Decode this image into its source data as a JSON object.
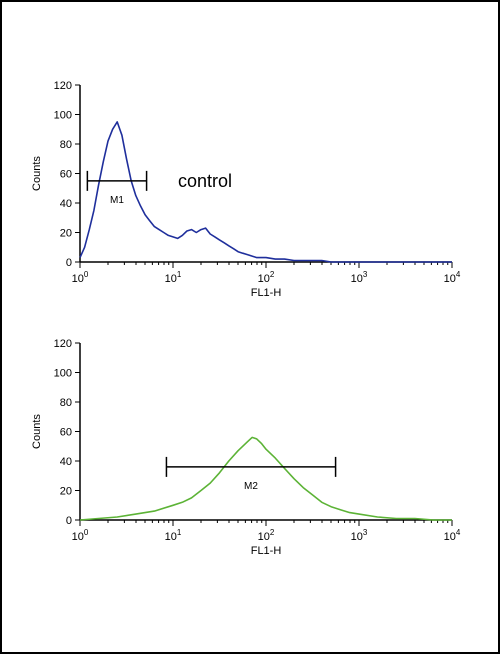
{
  "chart_data": [
    {
      "type": "line",
      "xlabel": "FL1-H",
      "ylabel": "Counts",
      "xscale": "log",
      "xlim": [
        1,
        10000
      ],
      "ylim": [
        0,
        120
      ],
      "x_ticks": [
        1,
        10,
        100,
        1000,
        10000
      ],
      "y_ticks": [
        0,
        20,
        40,
        60,
        80,
        100,
        120
      ],
      "color": "#1f2f9c",
      "series": [
        {
          "x": [
            1.0,
            1.12,
            1.26,
            1.41,
            1.58,
            1.78,
            2.0,
            2.24,
            2.51,
            2.82,
            3.16,
            3.55,
            3.98,
            4.47,
            5.01,
            5.62,
            6.31,
            7.08,
            7.94,
            8.91,
            10.0,
            11.2,
            12.6,
            14.1,
            15.8,
            17.8,
            20.0,
            22.4,
            25.1,
            28.2,
            31.6,
            35.5,
            39.8,
            44.7,
            50.1,
            56.2,
            63.1,
            70.8,
            79.4,
            89.1,
            100,
            126,
            158,
            200,
            251,
            316,
            398,
            501,
            631,
            794,
            1000,
            10000
          ],
          "y": [
            3,
            10,
            22,
            35,
            52,
            68,
            82,
            90,
            95,
            86,
            70,
            55,
            45,
            38,
            32,
            28,
            24,
            22,
            20,
            18,
            17,
            16,
            18,
            21,
            22,
            20,
            22,
            23,
            19,
            17,
            15,
            13,
            11,
            9,
            7,
            6,
            5,
            4,
            3,
            3,
            3,
            2,
            2,
            1,
            1,
            1,
            1,
            0,
            0,
            0,
            0,
            0
          ]
        }
      ],
      "gate": {
        "label": "M1",
        "x_start": 1.2,
        "x_end": 5.2,
        "y": 55
      },
      "annotation": "control"
    },
    {
      "type": "line",
      "xlabel": "FL1-H",
      "ylabel": "Counts",
      "xscale": "log",
      "xlim": [
        1,
        10000
      ],
      "ylim": [
        0,
        120
      ],
      "x_ticks": [
        1,
        10,
        100,
        1000,
        10000
      ],
      "y_ticks": [
        0,
        20,
        40,
        60,
        80,
        100,
        120
      ],
      "color": "#5cb336",
      "series": [
        {
          "x": [
            1.0,
            1.58,
            2.51,
            3.98,
            6.31,
            10.0,
            12.6,
            15.8,
            20.0,
            25.1,
            31.6,
            39.8,
            50.1,
            63.1,
            70.8,
            79.4,
            89.1,
            100,
            126,
            158,
            200,
            251,
            316,
            398,
            501,
            631,
            794,
            1000,
            1580,
            2510,
            3980,
            6310,
            10000
          ],
          "y": [
            0,
            1,
            2,
            4,
            6,
            10,
            12,
            15,
            20,
            25,
            32,
            40,
            47,
            53,
            56,
            55,
            52,
            48,
            42,
            35,
            28,
            22,
            17,
            12,
            9,
            7,
            5,
            4,
            2,
            1,
            1,
            0,
            0
          ]
        }
      ],
      "gate": {
        "label": "M2",
        "x_start": 8.5,
        "x_end": 560,
        "y": 36
      }
    }
  ]
}
